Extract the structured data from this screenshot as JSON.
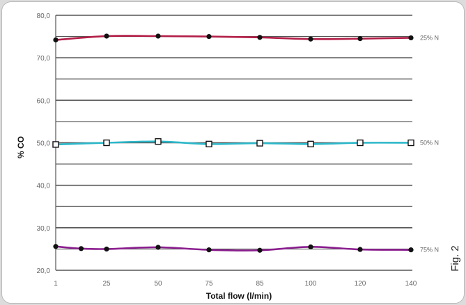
{
  "figure_label": "Fig. 2",
  "chart_data": {
    "type": "line",
    "xlabel": "Total flow (l/min)",
    "ylabel": "% CO",
    "categories": [
      "1",
      "25",
      "50",
      "75",
      "85",
      "100",
      "120",
      "140"
    ],
    "ylim": [
      20,
      80
    ],
    "y_ticks": [
      "20,0",
      "30,0",
      "40,0",
      "50,0",
      "60,0",
      "70,0",
      "80,0"
    ],
    "grid": true,
    "series": [
      {
        "name": "25% N",
        "color": "#b21d46",
        "marker": "filled-circle",
        "values": [
          74.2,
          75.1,
          75.1,
          75.0,
          74.8,
          74.4,
          74.5,
          74.7
        ]
      },
      {
        "name": "50% N",
        "color": "#2bb7c9",
        "marker": "open-square",
        "values": [
          49.6,
          50.0,
          50.3,
          49.7,
          49.9,
          49.7,
          50.0,
          50.0
        ]
      },
      {
        "name": "75% N",
        "color": "#8b1f8f",
        "marker": "filled-circle",
        "values": [
          25.6,
          25.0,
          25.4,
          24.8,
          24.7,
          25.5,
          24.9,
          24.8
        ],
        "extra_points": [
          {
            "x": 13,
            "y": 25.1
          }
        ]
      }
    ]
  }
}
